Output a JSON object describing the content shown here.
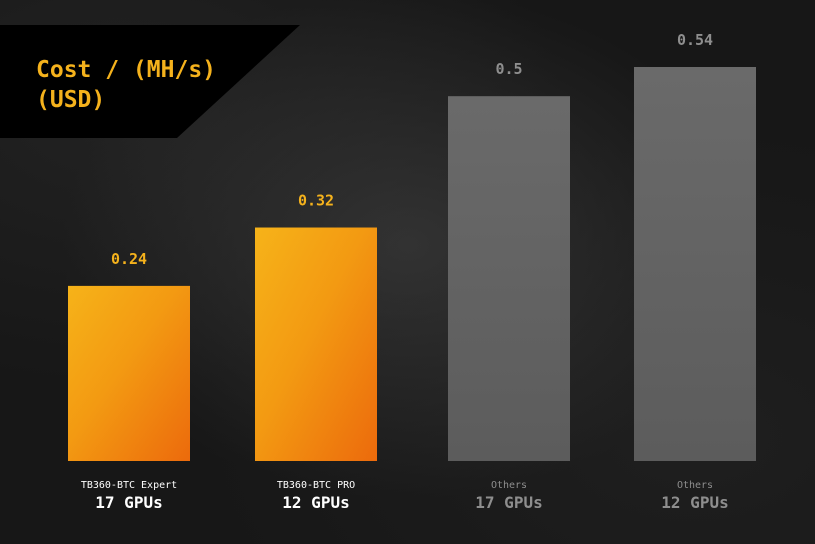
{
  "chart_data": {
    "type": "bar",
    "title": "Cost / (MH/s)\n(USD)",
    "categories": [
      {
        "line1": "TB360-BTC Expert",
        "line2": "17 GPUs"
      },
      {
        "line1": "TB360-BTC PRO",
        "line2": "12 GPUs"
      },
      {
        "line1": "Others",
        "line2": "17 GPUs"
      },
      {
        "line1": "Others",
        "line2": "12 GPUs"
      }
    ],
    "values": [
      0.24,
      0.32,
      0.5,
      0.54
    ],
    "value_labels": [
      "0.24",
      "0.32",
      "0.5",
      "0.54"
    ],
    "colors": {
      "highlight": "#f07d0e",
      "highlight_light": "#f6b319",
      "others": "#666666",
      "title": "#f5b21c",
      "highlight_label": "#f5b21c",
      "others_label": "#8e8e8e",
      "category_white": "#ffffff",
      "category_gray": "#8e8e8e"
    },
    "highlighted": [
      true,
      true,
      false,
      false
    ],
    "ylim": [
      0,
      0.54
    ],
    "grid": false,
    "legend": "none"
  }
}
